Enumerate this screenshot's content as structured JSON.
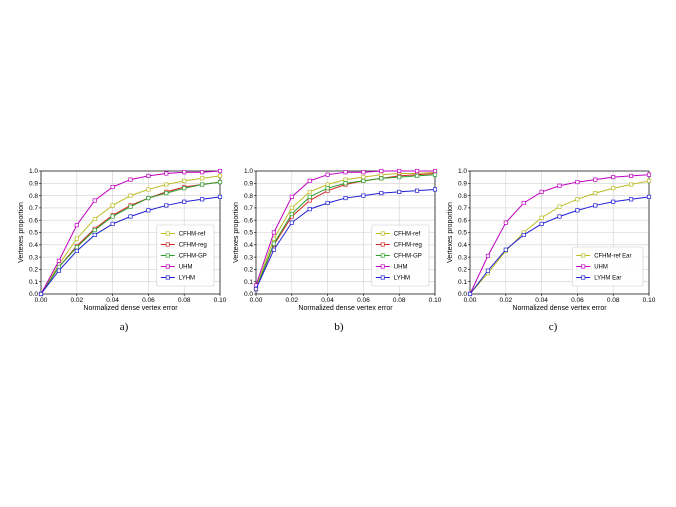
{
  "chart_data": [
    {
      "type": "line",
      "caption": "a)",
      "xlabel": "Normalized dense vertex error",
      "ylabel": "Vertexes proportion",
      "xlim": [
        0,
        0.1
      ],
      "ylim": [
        0,
        1.0
      ],
      "xticks": [
        "0.00",
        "0.02",
        "0.04",
        "0.06",
        "0.08",
        "0.10"
      ],
      "yticks": [
        "0.0",
        "0.1",
        "0.2",
        "0.3",
        "0.4",
        "0.5",
        "0.6",
        "0.7",
        "0.8",
        "0.9",
        "1.0"
      ],
      "grid": true,
      "legend_position": "lower-right",
      "x": [
        0,
        0.01,
        0.02,
        0.03,
        0.04,
        0.05,
        0.06,
        0.07,
        0.08,
        0.09,
        0.1
      ],
      "series": [
        {
          "name": "CFHM-ref",
          "color": "#bcbd22",
          "values": [
            0.0,
            0.24,
            0.45,
            0.61,
            0.72,
            0.8,
            0.85,
            0.89,
            0.92,
            0.94,
            0.96
          ]
        },
        {
          "name": "CFHM-reg",
          "color": "#d62728",
          "values": [
            0.0,
            0.22,
            0.39,
            0.53,
            0.64,
            0.72,
            0.78,
            0.83,
            0.87,
            0.89,
            0.91
          ]
        },
        {
          "name": "CFHM-GP",
          "color": "#2ca02c",
          "values": [
            0.0,
            0.22,
            0.38,
            0.52,
            0.63,
            0.71,
            0.78,
            0.82,
            0.86,
            0.89,
            0.91
          ]
        },
        {
          "name": "UHM",
          "color": "#c000c0",
          "values": [
            0.0,
            0.27,
            0.56,
            0.76,
            0.87,
            0.93,
            0.96,
            0.98,
            0.99,
            0.99,
            1.0
          ]
        },
        {
          "name": "LYHM",
          "color": "#1f1fd6",
          "values": [
            0.0,
            0.19,
            0.35,
            0.48,
            0.57,
            0.63,
            0.68,
            0.72,
            0.75,
            0.77,
            0.79
          ]
        }
      ]
    },
    {
      "type": "line",
      "caption": "b)",
      "xlabel": "Normalized dense vertex error",
      "ylabel": "Vertexes proportion",
      "xlim": [
        0,
        0.1
      ],
      "ylim": [
        0,
        1.0
      ],
      "xticks": [
        "0.00",
        "0.02",
        "0.04",
        "0.06",
        "0.08",
        "0.10"
      ],
      "yticks": [
        "0.0",
        "0.1",
        "0.2",
        "0.3",
        "0.4",
        "0.5",
        "0.6",
        "0.7",
        "0.8",
        "0.9",
        "1.0"
      ],
      "grid": true,
      "legend_position": "lower-right",
      "x": [
        0,
        0.01,
        0.02,
        0.03,
        0.04,
        0.05,
        0.06,
        0.07,
        0.08,
        0.09,
        0.1
      ],
      "series": [
        {
          "name": "CFHM-ref",
          "color": "#bcbd22",
          "values": [
            0.05,
            0.45,
            0.7,
            0.83,
            0.89,
            0.93,
            0.95,
            0.97,
            0.98,
            0.98,
            0.99
          ]
        },
        {
          "name": "CFHM-reg",
          "color": "#d62728",
          "values": [
            0.04,
            0.4,
            0.63,
            0.76,
            0.84,
            0.89,
            0.92,
            0.94,
            0.96,
            0.97,
            0.98
          ]
        },
        {
          "name": "CFHM-GP",
          "color": "#2ca02c",
          "values": [
            0.04,
            0.41,
            0.65,
            0.79,
            0.86,
            0.9,
            0.92,
            0.94,
            0.95,
            0.96,
            0.97
          ]
        },
        {
          "name": "UHM",
          "color": "#c000c0",
          "values": [
            0.07,
            0.5,
            0.79,
            0.92,
            0.97,
            0.99,
            0.99,
            1.0,
            1.0,
            1.0,
            1.0
          ]
        },
        {
          "name": "LYHM",
          "color": "#1f1fd6",
          "values": [
            0.04,
            0.36,
            0.58,
            0.69,
            0.74,
            0.78,
            0.8,
            0.82,
            0.83,
            0.84,
            0.85
          ]
        }
      ]
    },
    {
      "type": "line",
      "caption": "c)",
      "xlabel": "Normalized dense vertex error",
      "ylabel": "Vertexes proportion",
      "xlim": [
        0,
        0.1
      ],
      "ylim": [
        0,
        1.0
      ],
      "xticks": [
        "0.00",
        "0.02",
        "0.04",
        "0.06",
        "0.08",
        "0.10"
      ],
      "yticks": [
        "0.0",
        "0.1",
        "0.2",
        "0.3",
        "0.4",
        "0.5",
        "0.6",
        "0.7",
        "0.8",
        "0.9",
        "1.0"
      ],
      "grid": true,
      "legend_position": "lower-right",
      "x": [
        0,
        0.01,
        0.02,
        0.03,
        0.04,
        0.05,
        0.06,
        0.07,
        0.08,
        0.09,
        0.1
      ],
      "series": [
        {
          "name": "CFHM-ref Ear",
          "color": "#bcbd22",
          "values": [
            0.0,
            0.17,
            0.35,
            0.5,
            0.62,
            0.71,
            0.77,
            0.82,
            0.86,
            0.89,
            0.92
          ]
        },
        {
          "name": "UHM",
          "color": "#c000c0",
          "values": [
            0.0,
            0.31,
            0.58,
            0.74,
            0.83,
            0.88,
            0.91,
            0.93,
            0.95,
            0.96,
            0.97
          ]
        },
        {
          "name": "LYHM Ear",
          "color": "#1f1fd6",
          "values": [
            0.0,
            0.19,
            0.36,
            0.48,
            0.57,
            0.63,
            0.68,
            0.72,
            0.75,
            0.77,
            0.79
          ]
        }
      ]
    }
  ]
}
